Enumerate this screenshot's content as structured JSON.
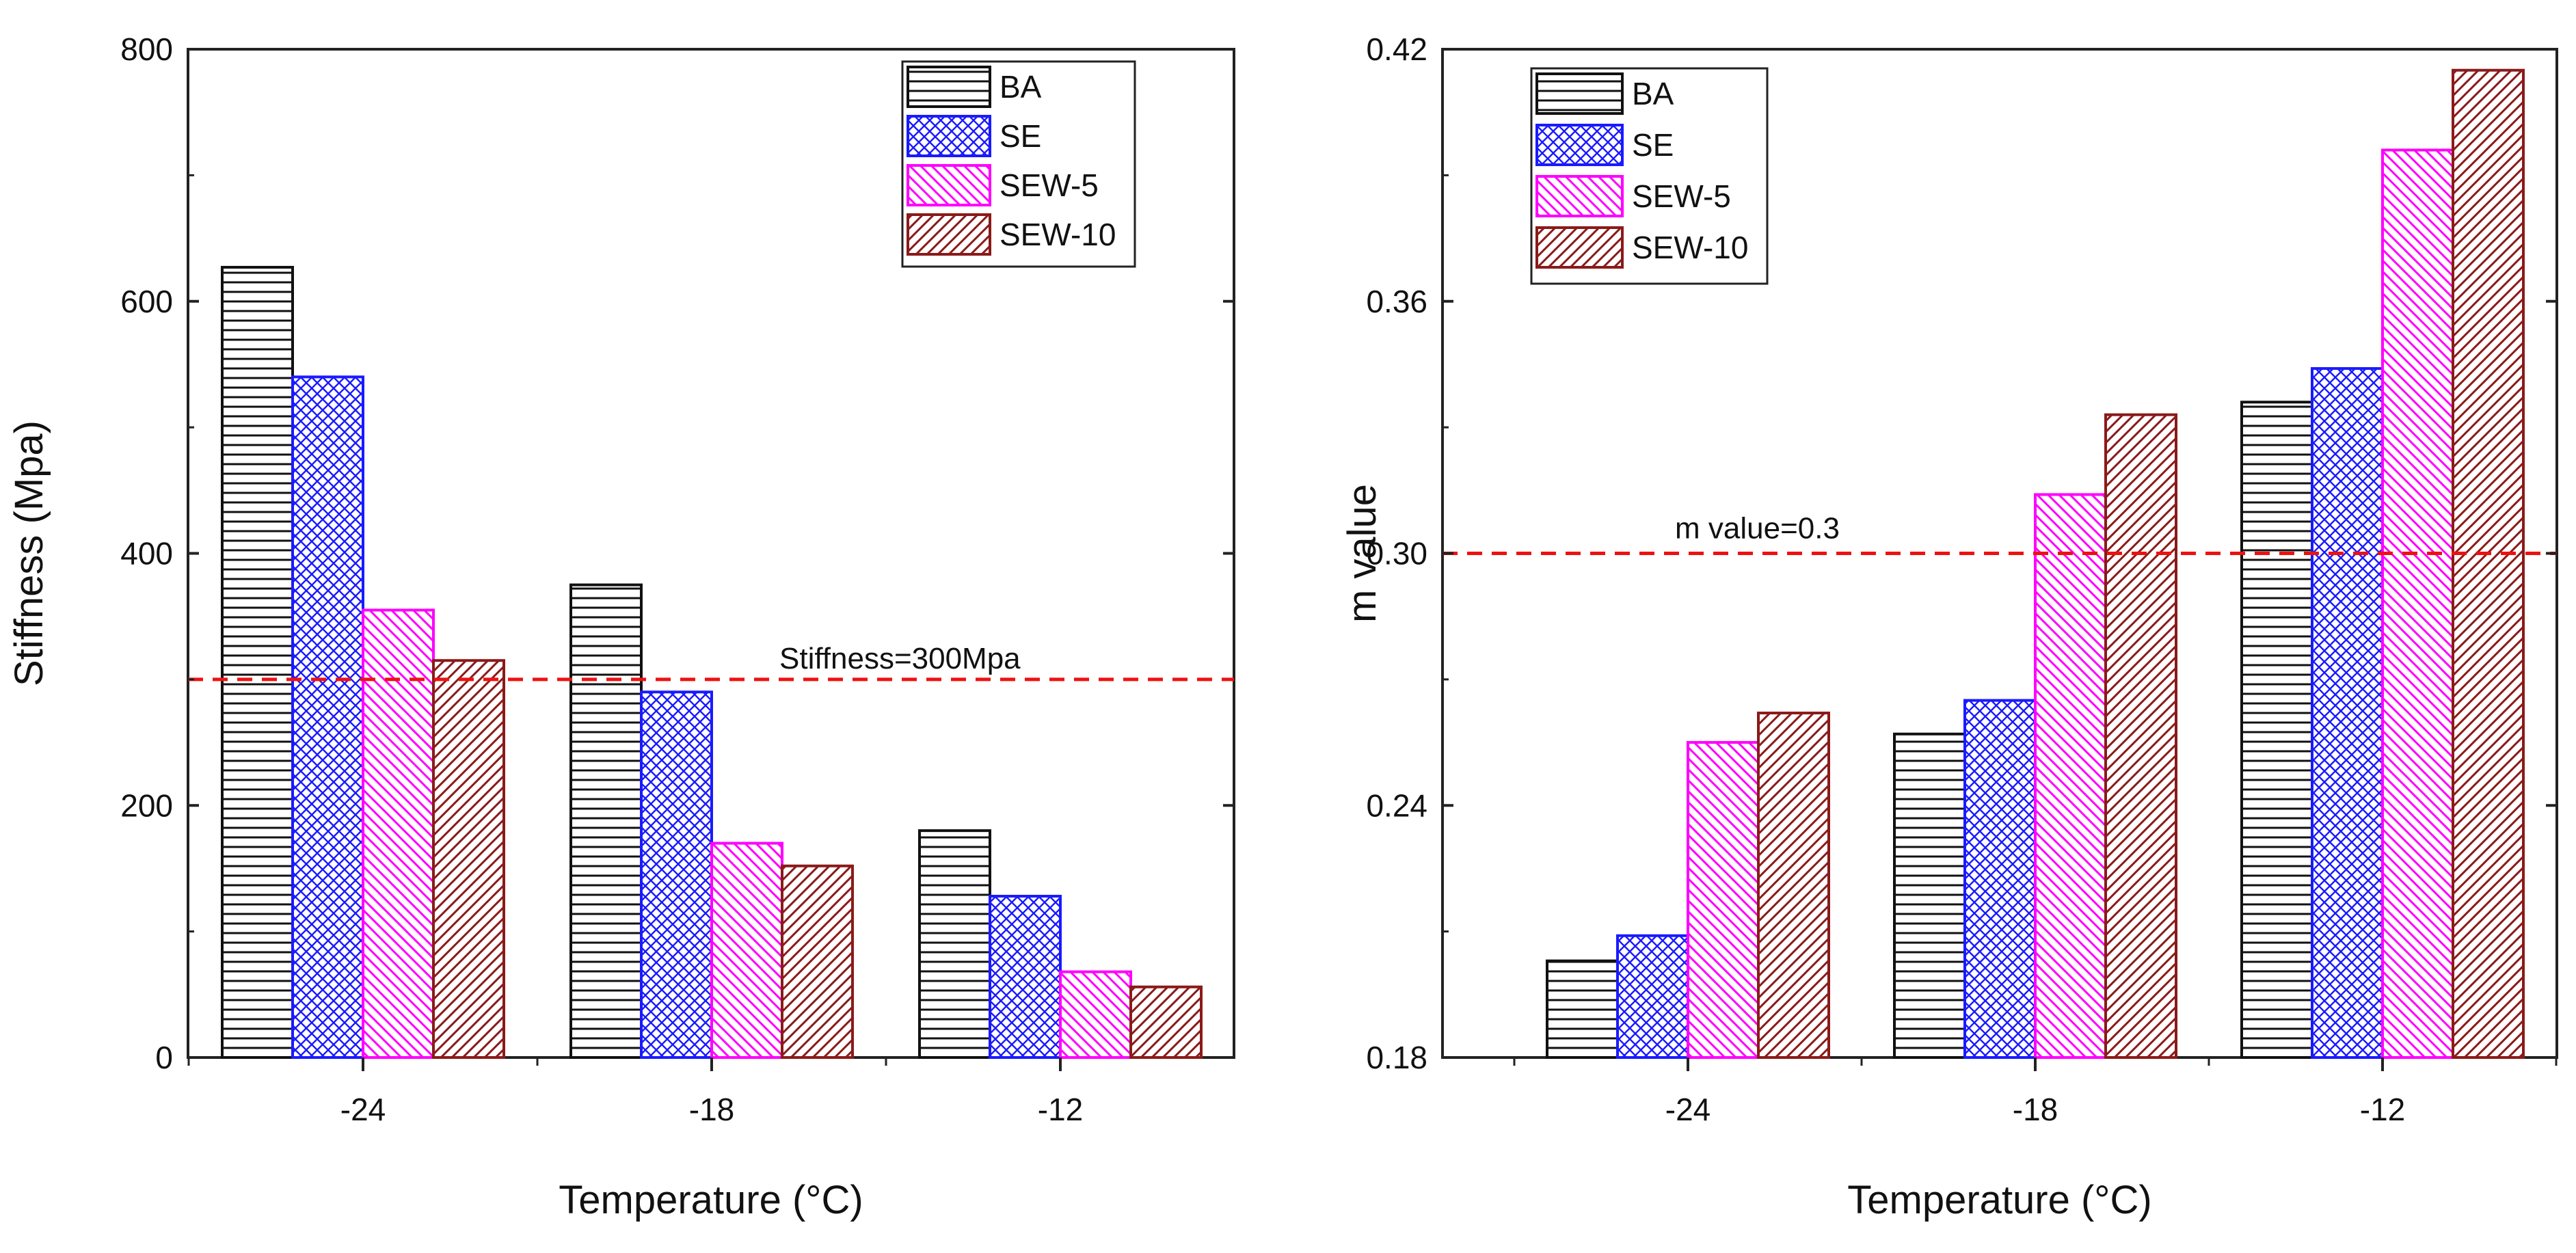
{
  "chart_data": [
    {
      "type": "bar",
      "title": "",
      "xlabel": "Temperature (°C)",
      "ylabel": "Stiffness (Mpa)",
      "categories": [
        "-24",
        "-18",
        "-12"
      ],
      "ylim": [
        0,
        800
      ],
      "yticks": [
        "0",
        "200",
        "400",
        "600",
        "800"
      ],
      "ytick_values": [
        0,
        200,
        400,
        600,
        800
      ],
      "series": [
        {
          "name": "BA",
          "values": [
            627,
            375,
            180
          ],
          "color": "#111111",
          "pattern": "horizontal-lines"
        },
        {
          "name": "SE",
          "values": [
            540,
            290,
            128
          ],
          "color": "#1a1aff",
          "pattern": "crosshatch"
        },
        {
          "name": "SEW-5",
          "values": [
            355,
            170,
            68
          ],
          "color": "#ff00ff",
          "pattern": "diagonal-lines"
        },
        {
          "name": "SEW-10",
          "values": [
            315,
            152,
            56
          ],
          "color": "#8b1a1a",
          "pattern": "diagonal-lines"
        }
      ],
      "reference_line": {
        "value": 300,
        "label": "Stiffness=300Mpa",
        "color": "#ee1111"
      },
      "legend_position": "top-right",
      "grid": false
    },
    {
      "type": "bar",
      "title": "",
      "xlabel": "Temperature (°C)",
      "ylabel": "m value",
      "categories": [
        "-24",
        "-18",
        "-12"
      ],
      "ylim": [
        0.18,
        0.42
      ],
      "yticks": [
        "0.18",
        "0.24",
        "0.30",
        "0.36",
        "0.42"
      ],
      "ytick_values": [
        0.18,
        0.24,
        0.3,
        0.36,
        0.42
      ],
      "series": [
        {
          "name": "BA",
          "values": [
            0.203,
            0.257,
            0.336
          ],
          "color": "#111111",
          "pattern": "horizontal-lines"
        },
        {
          "name": "SE",
          "values": [
            0.209,
            0.265,
            0.344
          ],
          "color": "#1a1aff",
          "pattern": "crosshatch"
        },
        {
          "name": "SEW-5",
          "values": [
            0.255,
            0.314,
            0.396
          ],
          "color": "#ff00ff",
          "pattern": "diagonal-lines"
        },
        {
          "name": "SEW-10",
          "values": [
            0.262,
            0.333,
            0.415
          ],
          "color": "#8b1a1a",
          "pattern": "diagonal-lines"
        }
      ],
      "reference_line": {
        "value": 0.3,
        "label": "m value=0.3",
        "color": "#ee1111"
      },
      "legend_position": "top-left",
      "grid": false
    }
  ]
}
